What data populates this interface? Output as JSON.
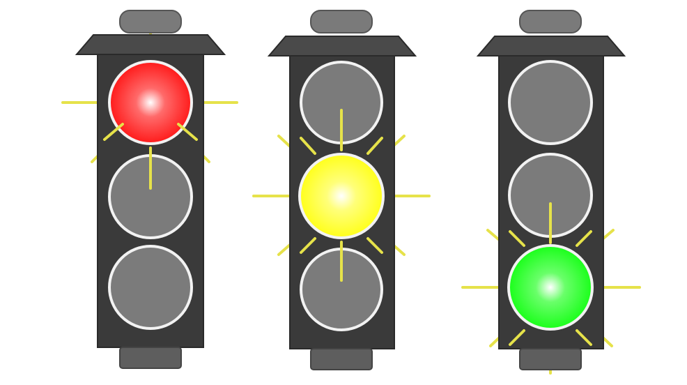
{
  "colors": {
    "background": "#ffffff",
    "housing": "#3a3a3a",
    "housing_edge": "#2a2a2a",
    "hood": "#4a4a4a",
    "cap": "#777777",
    "off_lamp": "#7b7b7b",
    "lamp_ring": "#f2f2f2",
    "rays": "#e6e24a"
  },
  "traffic_lights": [
    {
      "name": "traffic-light-red-on",
      "active_lamp": "red",
      "lamps": [
        {
          "color": "red",
          "lit": true,
          "fill": "#ff1a1a",
          "glow": "#ffffff"
        },
        {
          "color": "yellow",
          "lit": false,
          "fill": "#7b7b7b"
        },
        {
          "color": "green",
          "lit": false,
          "fill": "#7b7b7b"
        }
      ]
    },
    {
      "name": "traffic-light-yellow-on",
      "active_lamp": "yellow",
      "lamps": [
        {
          "color": "red",
          "lit": false,
          "fill": "#7b7b7b"
        },
        {
          "color": "yellow",
          "lit": true,
          "fill": "#ffff1a",
          "glow": "#ffffff"
        },
        {
          "color": "green",
          "lit": false,
          "fill": "#7b7b7b"
        }
      ]
    },
    {
      "name": "traffic-light-green-on",
      "active_lamp": "green",
      "lamps": [
        {
          "color": "red",
          "lit": false,
          "fill": "#7b7b7b"
        },
        {
          "color": "yellow",
          "lit": false,
          "fill": "#7b7b7b"
        },
        {
          "color": "green",
          "lit": true,
          "fill": "#1aff1a",
          "glow": "#ffffff"
        }
      ]
    }
  ]
}
